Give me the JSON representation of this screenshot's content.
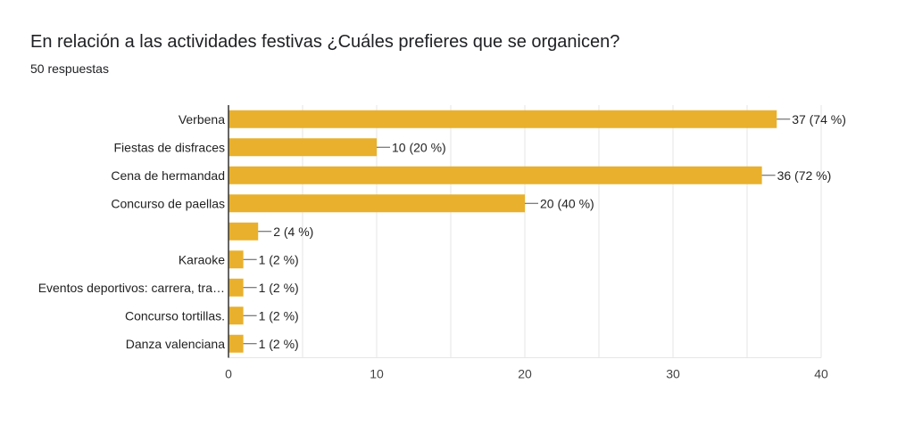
{
  "header": {
    "title": "En relación a las actividades festivas ¿Cuáles prefieres que se organicen?",
    "responses": "50 respuestas"
  },
  "colors": {
    "bar": "#E8B02C",
    "axis": "#333333",
    "grid": "#e6e6e6",
    "leader": "#555555"
  },
  "chart_data": {
    "type": "bar",
    "orientation": "horizontal",
    "categories": [
      "Verbena",
      "Fiestas de disfraces",
      "Cena de hermandad",
      "Concurso de paellas",
      "",
      "Karaoke",
      "Eventos deportivos: carrera, tra…",
      "Concurso tortillas.",
      "Danza valenciana"
    ],
    "values": [
      37,
      10,
      36,
      20,
      2,
      1,
      1,
      1,
      1
    ],
    "value_labels": [
      "37 (74 %)",
      "10 (20 %)",
      "36 (72 %)",
      "20 (40 %)",
      "2 (4 %)",
      "1 (2 %)",
      "1 (2 %)",
      "1 (2 %)",
      "1 (2 %)"
    ],
    "xlim": [
      0,
      40
    ],
    "xticks": [
      0,
      10,
      20,
      30,
      40
    ],
    "grid": true
  }
}
